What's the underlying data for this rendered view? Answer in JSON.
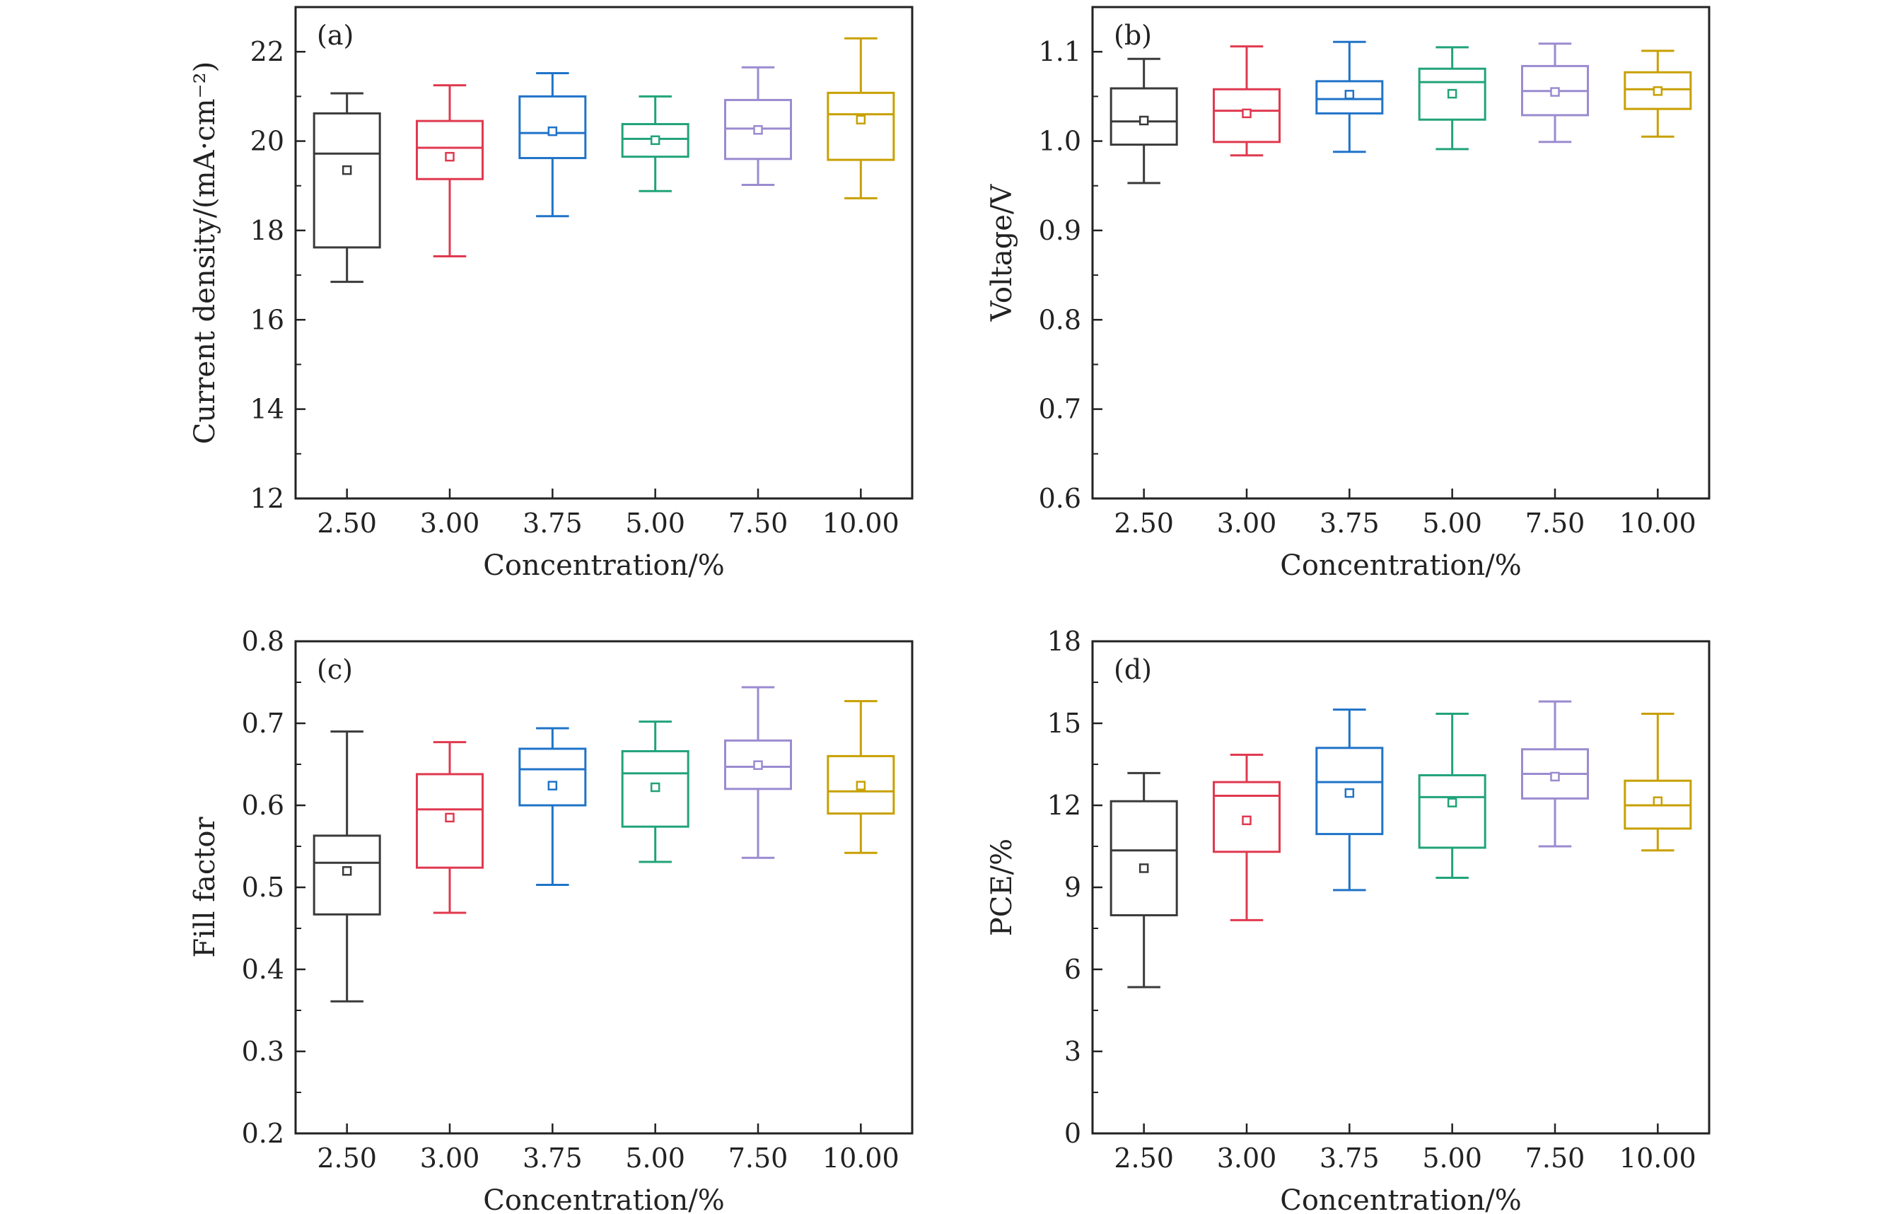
{
  "chart_data": [
    {
      "type": "box",
      "panel_label": "(a)",
      "title": "",
      "xlabel": "Concentration/%",
      "ylabel": "Current density/(mA·cm⁻²)",
      "ylim": [
        12,
        23
      ],
      "yticks": [
        12,
        14,
        16,
        18,
        20,
        22
      ],
      "ytick_labels": [
        "12",
        "14",
        "16",
        "18",
        "20",
        "22"
      ],
      "minor_ytick_step": 1,
      "categories": [
        "2.50",
        "3.00",
        "3.75",
        "5.00",
        "7.50",
        "10.00"
      ],
      "colors": [
        "#3a3a3a",
        "#e0394f",
        "#1f73c8",
        "#21a37a",
        "#9b8bd0",
        "#c8a000"
      ],
      "boxes": [
        {
          "whisker_low": 16.85,
          "q1": 17.62,
          "median": 19.72,
          "q3": 20.62,
          "whisker_high": 21.07,
          "mean": 19.35
        },
        {
          "whisker_low": 17.42,
          "q1": 19.15,
          "median": 19.85,
          "q3": 20.45,
          "whisker_high": 21.25,
          "mean": 19.65
        },
        {
          "whisker_low": 18.32,
          "q1": 19.62,
          "median": 20.18,
          "q3": 21.0,
          "whisker_high": 21.52,
          "mean": 20.22
        },
        {
          "whisker_low": 18.88,
          "q1": 19.65,
          "median": 20.05,
          "q3": 20.38,
          "whisker_high": 21.0,
          "mean": 20.02
        },
        {
          "whisker_low": 19.02,
          "q1": 19.6,
          "median": 20.28,
          "q3": 20.92,
          "whisker_high": 21.65,
          "mean": 20.25
        },
        {
          "whisker_low": 18.72,
          "q1": 19.58,
          "median": 20.6,
          "q3": 21.08,
          "whisker_high": 22.3,
          "mean": 20.48
        }
      ]
    },
    {
      "type": "box",
      "panel_label": "(b)",
      "title": "",
      "xlabel": "Concentration/%",
      "ylabel": "Voltage/V",
      "ylim": [
        0.6,
        1.15
      ],
      "yticks": [
        0.6,
        0.7,
        0.8,
        0.9,
        1.0,
        1.1
      ],
      "ytick_labels": [
        "0.6",
        "0.7",
        "0.8",
        "0.9",
        "1.0",
        "1.1"
      ],
      "minor_ytick_step": 0.05,
      "categories": [
        "2.50",
        "3.00",
        "3.75",
        "5.00",
        "7.50",
        "10.00"
      ],
      "colors": [
        "#3a3a3a",
        "#e0394f",
        "#1f73c8",
        "#21a37a",
        "#9b8bd0",
        "#c8a000"
      ],
      "boxes": [
        {
          "whisker_low": 0.953,
          "q1": 0.996,
          "median": 1.022,
          "q3": 1.059,
          "whisker_high": 1.092,
          "mean": 1.023
        },
        {
          "whisker_low": 0.984,
          "q1": 0.999,
          "median": 1.034,
          "q3": 1.058,
          "whisker_high": 1.106,
          "mean": 1.031
        },
        {
          "whisker_low": 0.988,
          "q1": 1.031,
          "median": 1.047,
          "q3": 1.067,
          "whisker_high": 1.111,
          "mean": 1.052
        },
        {
          "whisker_low": 0.991,
          "q1": 1.024,
          "median": 1.066,
          "q3": 1.081,
          "whisker_high": 1.105,
          "mean": 1.053
        },
        {
          "whisker_low": 0.999,
          "q1": 1.029,
          "median": 1.056,
          "q3": 1.084,
          "whisker_high": 1.109,
          "mean": 1.055
        },
        {
          "whisker_low": 1.005,
          "q1": 1.036,
          "median": 1.058,
          "q3": 1.077,
          "whisker_high": 1.101,
          "mean": 1.056
        }
      ]
    },
    {
      "type": "box",
      "panel_label": "(c)",
      "title": "",
      "xlabel": "Concentration/%",
      "ylabel": "Fill factor",
      "ylim": [
        0.2,
        0.8
      ],
      "yticks": [
        0.2,
        0.3,
        0.4,
        0.5,
        0.6,
        0.7,
        0.8
      ],
      "ytick_labels": [
        "0.2",
        "0.3",
        "0.4",
        "0.5",
        "0.6",
        "0.7",
        "0.8"
      ],
      "minor_ytick_step": 0.05,
      "categories": [
        "2.50",
        "3.00",
        "3.75",
        "5.00",
        "7.50",
        "10.00"
      ],
      "colors": [
        "#3a3a3a",
        "#e0394f",
        "#1f73c8",
        "#21a37a",
        "#9b8bd0",
        "#c8a000"
      ],
      "boxes": [
        {
          "whisker_low": 0.361,
          "q1": 0.467,
          "median": 0.53,
          "q3": 0.563,
          "whisker_high": 0.69,
          "mean": 0.52
        },
        {
          "whisker_low": 0.469,
          "q1": 0.524,
          "median": 0.595,
          "q3": 0.638,
          "whisker_high": 0.677,
          "mean": 0.585
        },
        {
          "whisker_low": 0.503,
          "q1": 0.6,
          "median": 0.644,
          "q3": 0.669,
          "whisker_high": 0.694,
          "mean": 0.624
        },
        {
          "whisker_low": 0.531,
          "q1": 0.574,
          "median": 0.639,
          "q3": 0.666,
          "whisker_high": 0.702,
          "mean": 0.622
        },
        {
          "whisker_low": 0.536,
          "q1": 0.62,
          "median": 0.647,
          "q3": 0.679,
          "whisker_high": 0.744,
          "mean": 0.649
        },
        {
          "whisker_low": 0.542,
          "q1": 0.59,
          "median": 0.617,
          "q3": 0.66,
          "whisker_high": 0.727,
          "mean": 0.624
        }
      ]
    },
    {
      "type": "box",
      "panel_label": "(d)",
      "title": "",
      "xlabel": "Concentration/%",
      "ylabel": "PCE/%",
      "ylim": [
        0,
        18
      ],
      "yticks": [
        0,
        3,
        6,
        9,
        12,
        15,
        18
      ],
      "ytick_labels": [
        "0",
        "3",
        "6",
        "9",
        "12",
        "15",
        "18"
      ],
      "minor_ytick_step": 1.5,
      "categories": [
        "2.50",
        "3.00",
        "3.75",
        "5.00",
        "7.50",
        "10.00"
      ],
      "colors": [
        "#3a3a3a",
        "#e0394f",
        "#1f73c8",
        "#21a37a",
        "#9b8bd0",
        "#c8a000"
      ],
      "boxes": [
        {
          "whisker_low": 5.35,
          "q1": 7.98,
          "median": 10.35,
          "q3": 12.15,
          "whisker_high": 13.18,
          "mean": 9.7
        },
        {
          "whisker_low": 7.8,
          "q1": 10.3,
          "median": 12.35,
          "q3": 12.85,
          "whisker_high": 13.85,
          "mean": 11.45
        },
        {
          "whisker_low": 8.9,
          "q1": 10.95,
          "median": 12.85,
          "q3": 14.1,
          "whisker_high": 15.5,
          "mean": 12.45
        },
        {
          "whisker_low": 9.35,
          "q1": 10.45,
          "median": 12.3,
          "q3": 13.1,
          "whisker_high": 15.35,
          "mean": 12.1
        },
        {
          "whisker_low": 10.5,
          "q1": 12.25,
          "median": 13.15,
          "q3": 14.05,
          "whisker_high": 15.8,
          "mean": 13.05
        },
        {
          "whisker_low": 10.35,
          "q1": 11.15,
          "median": 12.0,
          "q3": 12.9,
          "whisker_high": 15.35,
          "mean": 12.15
        }
      ]
    }
  ]
}
